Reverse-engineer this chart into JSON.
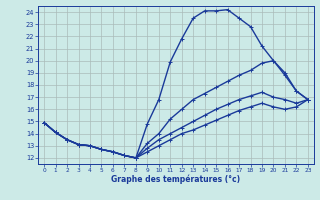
{
  "xlabel": "Graphe des températures (°c)",
  "xlim": [
    -0.5,
    23.5
  ],
  "ylim": [
    11.5,
    24.5
  ],
  "yticks": [
    12,
    13,
    14,
    15,
    16,
    17,
    18,
    19,
    20,
    21,
    22,
    23,
    24
  ],
  "xticks": [
    0,
    1,
    2,
    3,
    4,
    5,
    6,
    7,
    8,
    9,
    10,
    11,
    12,
    13,
    14,
    15,
    16,
    17,
    18,
    19,
    20,
    21,
    22,
    23
  ],
  "bg_color": "#cceae7",
  "line_color": "#1a3a9a",
  "grid_color": "#aabcba",
  "line1_y": [
    14.9,
    14.1,
    13.5,
    13.1,
    13.0,
    12.7,
    12.5,
    12.2,
    12.0,
    14.8,
    16.8,
    19.9,
    21.8,
    23.5,
    24.1,
    24.1,
    24.2,
    23.5,
    22.8,
    21.2,
    20.0,
    18.8,
    17.5,
    16.8
  ],
  "line2_y": [
    14.9,
    14.1,
    13.5,
    13.1,
    13.0,
    12.7,
    12.5,
    12.2,
    12.0,
    13.2,
    14.0,
    15.2,
    16.0,
    16.8,
    17.3,
    17.8,
    18.3,
    18.8,
    19.2,
    19.8,
    20.0,
    19.0,
    17.5,
    16.8
  ],
  "line3_y": [
    14.9,
    14.1,
    13.5,
    13.1,
    13.0,
    12.7,
    12.5,
    12.2,
    12.0,
    12.8,
    13.5,
    14.0,
    14.5,
    15.0,
    15.5,
    16.0,
    16.4,
    16.8,
    17.1,
    17.4,
    17.0,
    16.8,
    16.5,
    16.8
  ],
  "line4_y": [
    14.9,
    14.1,
    13.5,
    13.1,
    13.0,
    12.7,
    12.5,
    12.2,
    12.0,
    12.5,
    13.0,
    13.5,
    14.0,
    14.3,
    14.7,
    15.1,
    15.5,
    15.9,
    16.2,
    16.5,
    16.2,
    16.0,
    16.2,
    16.8
  ],
  "marker_size": 2.5,
  "line_width": 1.0
}
